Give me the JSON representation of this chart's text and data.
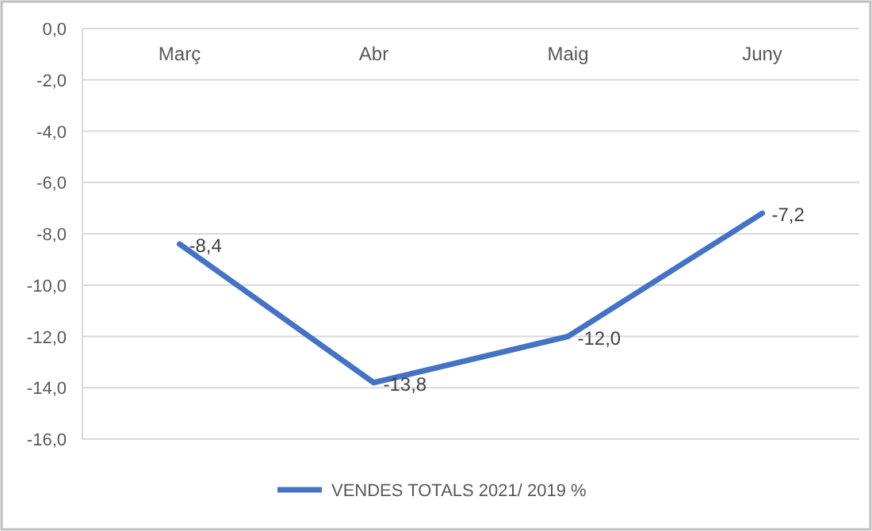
{
  "chart_data": {
    "type": "line",
    "categories": [
      "Març",
      "Abr",
      "Maig",
      "Juny"
    ],
    "series": [
      {
        "name": "VENDES TOTALS 2021/ 2019 %",
        "color": "#4472c4",
        "values": [
          -8.4,
          -13.8,
          -12.0,
          -7.2
        ],
        "value_labels": [
          "-8,4",
          "-13,8",
          "-12,0",
          "-7,2"
        ]
      }
    ],
    "ylim": [
      -16,
      0
    ],
    "yticks": [
      {
        "value": 0,
        "label": "0,0"
      },
      {
        "value": -2,
        "label": "-2,0"
      },
      {
        "value": -4,
        "label": "-4,0"
      },
      {
        "value": -6,
        "label": "-6,0"
      },
      {
        "value": -8,
        "label": "-8,0"
      },
      {
        "value": -10,
        "label": "-10,0"
      },
      {
        "value": -12,
        "label": "-12,0"
      },
      {
        "value": -14,
        "label": "-14,0"
      },
      {
        "value": -16,
        "label": "-16,0"
      }
    ],
    "grid": "y",
    "legend": "bottom",
    "marker": "none",
    "line_style": "solid"
  }
}
